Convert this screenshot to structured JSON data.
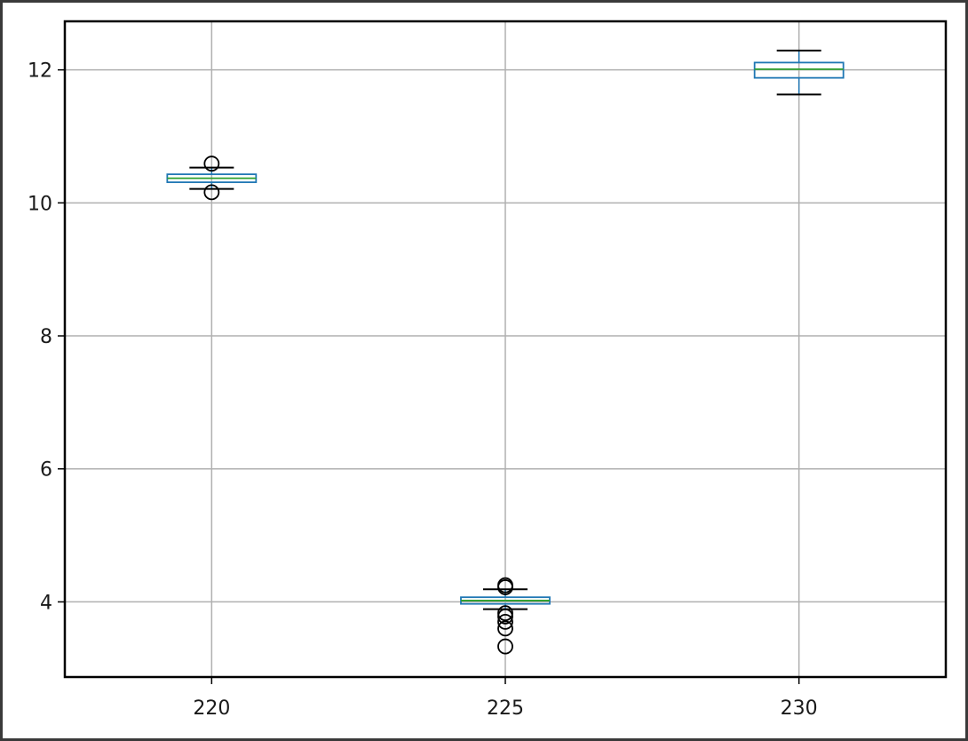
{
  "chart_data": {
    "type": "box",
    "title": "",
    "xlabel": "",
    "ylabel": "",
    "categories": [
      "220",
      "225",
      "230"
    ],
    "yticks": [
      "4",
      "6",
      "8",
      "10",
      "12"
    ],
    "ylim": [
      2.87,
      12.73
    ],
    "grid": true,
    "boxes": [
      {
        "category": "220",
        "whisker_low": 10.21,
        "q1": 10.31,
        "median": 10.37,
        "q3": 10.43,
        "whisker_high": 10.53,
        "outliers": [
          10.16,
          10.59
        ]
      },
      {
        "category": "225",
        "whisker_low": 3.89,
        "q1": 3.97,
        "median": 4.02,
        "q3": 4.07,
        "whisker_high": 4.19,
        "outliers": [
          3.33,
          3.6,
          3.7,
          3.78,
          3.83,
          4.22,
          4.25
        ]
      },
      {
        "category": "230",
        "whisker_low": 11.63,
        "q1": 11.88,
        "median": 12.01,
        "q3": 12.11,
        "whisker_high": 12.29,
        "outliers": []
      }
    ],
    "colors": {
      "box": "#1f77b4",
      "median": "#2ca02c",
      "whisker": "#000000",
      "grid": "#b0b0b0"
    }
  }
}
